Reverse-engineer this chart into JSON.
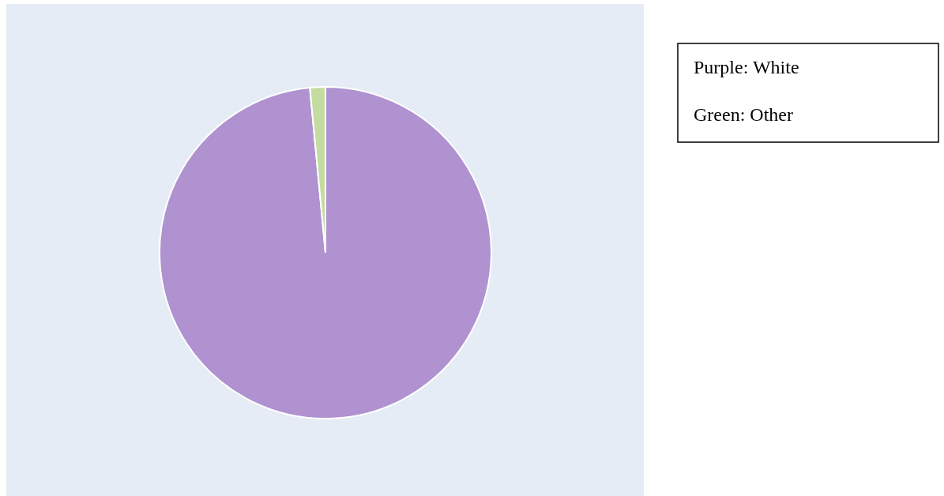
{
  "chart_data": {
    "type": "pie",
    "categories": [
      null,
      null
    ],
    "values": [
      98.5,
      1.5
    ],
    "colors": [
      "#af92cf",
      "#c5dca0"
    ],
    "annotations": [
      "Purple: White",
      "Green: Other"
    ]
  }
}
